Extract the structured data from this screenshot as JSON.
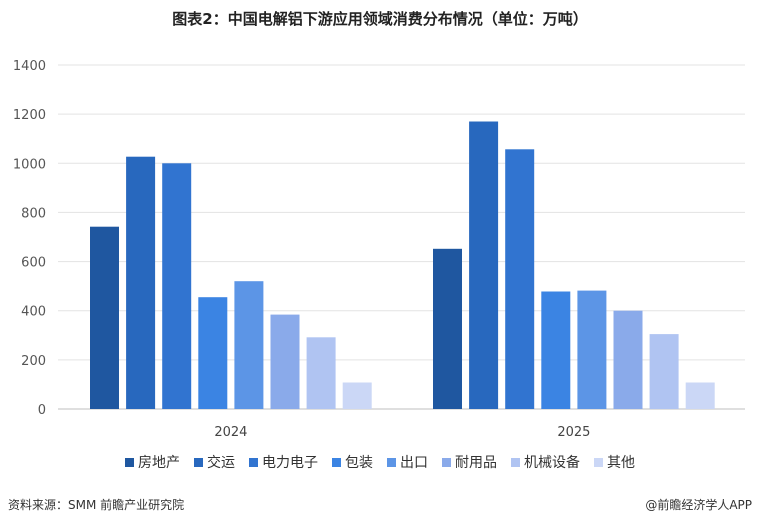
{
  "title": "图表2：中国电解铝下游应用领域消费分布情况（单位：万吨）",
  "source": "资料来源：SMM  前瞻产业研究院",
  "brand": "@前瞻经济学人APP",
  "chart_data": {
    "type": "bar",
    "title": "图表2：中国电解铝下游应用领域消费分布情况（单位：万吨）",
    "categories": [
      "2024",
      "2025"
    ],
    "ylim": [
      0,
      1400
    ],
    "yticks": [
      0,
      200,
      400,
      600,
      800,
      1000,
      1200,
      1400
    ],
    "grid": true,
    "legend_position": "bottom",
    "series": [
      {
        "name": "房地产",
        "color": "#1f57a0",
        "values": [
          742,
          652
        ]
      },
      {
        "name": "交运",
        "color": "#2868be",
        "values": [
          1027,
          1170
        ]
      },
      {
        "name": "电力电子",
        "color": "#3174d0",
        "values": [
          1000,
          1057
        ]
      },
      {
        "name": "包装",
        "color": "#3b84e3",
        "values": [
          455,
          478
        ]
      },
      {
        "name": "出口",
        "color": "#5c95e6",
        "values": [
          520,
          482
        ]
      },
      {
        "name": "耐用品",
        "color": "#8aaaea",
        "values": [
          384,
          400
        ]
      },
      {
        "name": "机械设备",
        "color": "#b0c4f2",
        "values": [
          292,
          305
        ]
      },
      {
        "name": "其他",
        "color": "#cbd7f6",
        "values": [
          108,
          108
        ]
      }
    ]
  }
}
